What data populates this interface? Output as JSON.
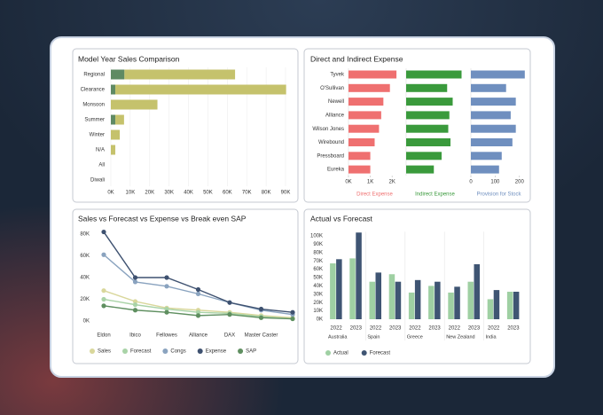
{
  "chart_data": [
    {
      "type": "bar",
      "title": "Model Year Sales Comparison",
      "categories": [
        "Regional",
        "Clearance",
        "Monsoon",
        "Summer",
        "Winter",
        "N/A",
        "All",
        "Diwali"
      ],
      "stacked": true,
      "series": [
        {
          "color": "#5f8a63",
          "values": [
            7000,
            2300,
            0,
            2300,
            0,
            0,
            0,
            0
          ]
        },
        {
          "color": "#c5c26c",
          "values": [
            57000,
            88000,
            24000,
            4500,
            4600,
            2300,
            0,
            0
          ]
        }
      ],
      "xlim": [
        0,
        90000
      ],
      "xticks": [
        {
          "value": 0,
          "label": "0K"
        },
        {
          "value": 10000,
          "label": "10K"
        },
        {
          "value": 20000,
          "label": "20K"
        },
        {
          "value": 30000,
          "label": "30K"
        },
        {
          "value": 40000,
          "label": "40K"
        },
        {
          "value": 50000,
          "label": "50K"
        },
        {
          "value": 60000,
          "label": "60K"
        },
        {
          "value": 70000,
          "label": "70K"
        },
        {
          "value": 80000,
          "label": "80K"
        },
        {
          "value": 90000,
          "label": "90K"
        }
      ],
      "grid": true
    },
    {
      "type": "facet",
      "title": "Direct and Indirect Expense",
      "categories": [
        "Tyvek",
        "O'Sullivan",
        "Newell",
        "Alliance",
        "Wilson Jones",
        "Wirebound",
        "Pressboard",
        "Eureka"
      ],
      "series": [
        {
          "name": "Direct Expense",
          "color": "#ef7070",
          "values": [
            2200,
            1900,
            1600,
            1500,
            1400,
            1200,
            1000,
            1000
          ],
          "xlim": [
            0,
            2400
          ],
          "xticks": [
            {
              "value": 0,
              "label": "0K"
            },
            {
              "value": 1000,
              "label": "1K"
            },
            {
              "value": 2000,
              "label": "2K"
            }
          ]
        },
        {
          "name": "Indirect Expense",
          "color": "#3a9a3c",
          "values": [
            2500,
            1850,
            2100,
            1950,
            1900,
            2000,
            1600,
            1250
          ],
          "xlim": [
            0,
            2600
          ]
        },
        {
          "name": "Provision for Stock",
          "color": "#6f8fbf",
          "values": [
            222,
            145,
            185,
            164,
            185,
            171,
            127,
            116
          ],
          "xlim": [
            0,
            230
          ],
          "xticks": [
            0,
            100,
            200
          ]
        }
      ]
    },
    {
      "type": "line",
      "title": "Sales vs Forecast vs Expense vs Break even SAP",
      "categories": [
        "Eldon",
        "Ibico",
        "Fellowes",
        "Alliance",
        "DAX",
        "Master Caster",
        null
      ],
      "series": [
        {
          "name": "Sales",
          "color": "#d9d79b",
          "values": [
            28000,
            18000,
            12000,
            10000,
            8000,
            5000,
            3000
          ]
        },
        {
          "name": "Forecast",
          "color": "#a9d3a7",
          "values": [
            20000,
            15000,
            11000,
            8000,
            7000,
            4000,
            2000
          ]
        },
        {
          "name": "Congs",
          "color": "#8aa3bf",
          "values": [
            61000,
            36000,
            32000,
            25000,
            17000,
            10000,
            6000
          ]
        },
        {
          "name": "Expense",
          "color": "#3e5170",
          "values": [
            82000,
            40000,
            40000,
            29000,
            17000,
            11000,
            8000
          ]
        },
        {
          "name": "SAP",
          "color": "#5f8f60",
          "values": [
            14000,
            10000,
            8000,
            5000,
            6000,
            3000,
            2000
          ]
        }
      ],
      "ylim": [
        0,
        80000
      ],
      "yticks": [
        {
          "value": 0,
          "label": "0K"
        },
        {
          "value": 20000,
          "label": "20K"
        },
        {
          "value": 40000,
          "label": "40K"
        },
        {
          "value": 60000,
          "label": "60K"
        },
        {
          "value": 80000,
          "label": "80K"
        }
      ]
    },
    {
      "type": "column",
      "title": "Actual vs Forecast",
      "categories": [
        "2022",
        "2023",
        "2022",
        "2023",
        "2022",
        "2023",
        "2022",
        "2023",
        "2022",
        "2023"
      ],
      "groups": [
        "Australia",
        "Spain",
        "Greece",
        "New Zealand",
        "India"
      ],
      "series": [
        {
          "name": "Actual",
          "color": "#9fd0a3",
          "values": [
            67000,
            73000,
            45000,
            54000,
            32000,
            40000,
            32000,
            45000,
            24000,
            33000
          ]
        },
        {
          "name": "Forecast",
          "color": "#3f5573",
          "values": [
            72000,
            104000,
            56000,
            45000,
            47000,
            45000,
            39000,
            66000,
            35000,
            33000
          ]
        }
      ],
      "ylim": [
        0,
        105000
      ],
      "yticks": [
        {
          "value": 0,
          "label": "0K"
        },
        {
          "value": 10000,
          "label": "10K"
        },
        {
          "value": 20000,
          "label": "20K"
        },
        {
          "value": 30000,
          "label": "30K"
        },
        {
          "value": 40000,
          "label": "40K"
        },
        {
          "value": 50000,
          "label": "50K"
        },
        {
          "value": 60000,
          "label": "60K"
        },
        {
          "value": 70000,
          "label": "70K"
        },
        {
          "value": 80000,
          "label": "80K"
        },
        {
          "value": 90000,
          "label": "90K"
        },
        {
          "value": 100000,
          "label": "100K"
        }
      ]
    }
  ]
}
